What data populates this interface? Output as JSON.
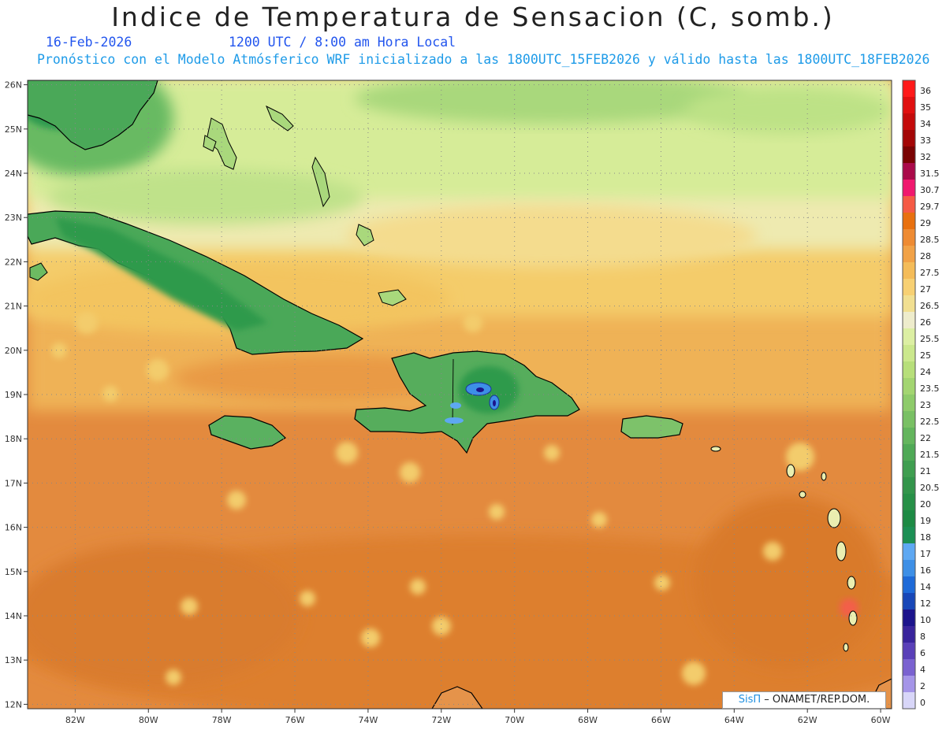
{
  "header": {
    "title": "Indice de Temperatura de Sensacion (C, somb.)",
    "date": "16-Feb-2026",
    "time": "1200 UTC / 8:00 am Hora Local",
    "forecast": "Pronóstico con el Modelo Atmósferico WRF inicializado a las 1800UTC_15FEB2026 y válido hasta las  1800UTC_18FEB2026"
  },
  "map": {
    "lon_range": [
      -83.3,
      -59.7
    ],
    "lat_range": [
      11.9,
      26.1
    ],
    "lat_ticks": [
      "26N",
      "25N",
      "24N",
      "23N",
      "22N",
      "21N",
      "20N",
      "19N",
      "18N",
      "17N",
      "16N",
      "15N",
      "14N",
      "13N",
      "12N"
    ],
    "lon_ticks": [
      "82W",
      "80W",
      "78W",
      "76W",
      "74W",
      "72W",
      "70W",
      "68W",
      "66W",
      "64W",
      "62W",
      "60W"
    ]
  },
  "legend": {
    "labels": [
      "36",
      "35",
      "34",
      "33",
      "32",
      "31.5",
      "30.7",
      "29.7",
      "29",
      "28.5",
      "28",
      "27.5",
      "27",
      "26.5",
      "26",
      "25.5",
      "25",
      "24",
      "23.5",
      "23",
      "22.5",
      "22",
      "21.5",
      "21",
      "20.5",
      "20",
      "19",
      "18",
      "17",
      "16",
      "14",
      "12",
      "10",
      "8",
      "6",
      "4",
      "2",
      "0"
    ],
    "colors": [
      "#ff1a1a",
      "#e01010",
      "#c40b0b",
      "#a30606",
      "#7a0303",
      "#aa0a4a",
      "#f0186e",
      "#f55a45",
      "#e8700f",
      "#ee8b33",
      "#f1a247",
      "#f4bc59",
      "#f7d073",
      "#f1df91",
      "#eeeccc",
      "#dcefa3",
      "#cbe88d",
      "#b7df7a",
      "#a3d571",
      "#8ecb6a",
      "#79c064",
      "#64b55d",
      "#4fa956",
      "#3f9e50",
      "#33954b",
      "#279047",
      "#1d8a44",
      "#1c8f54",
      "#5ea8f2",
      "#3d8fe6",
      "#1e6ad8",
      "#1847b8",
      "#1c148c",
      "#39249c",
      "#5a40b8",
      "#7a62d0",
      "#a595e8",
      "#d8d6f8"
    ]
  },
  "credit": {
    "sis": "SisΠ",
    "rest": " – ONAMET/REP.DOM."
  }
}
